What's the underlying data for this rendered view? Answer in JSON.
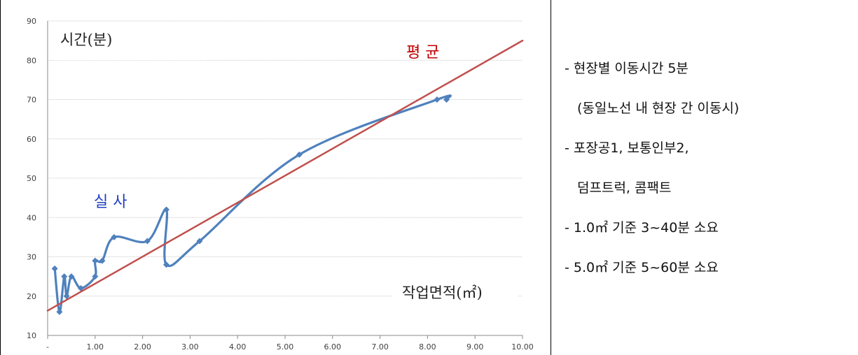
{
  "chart_data": {
    "type": "line",
    "ylabel": "시간(분)",
    "xlabel": "작업면적(㎡)",
    "xlim": [
      0,
      10
    ],
    "ylim": [
      10,
      90
    ],
    "x_ticks": [
      "-",
      "1.00",
      "2.00",
      "3.00",
      "4.00",
      "5.00",
      "6.00",
      "7.00",
      "8.00",
      "9.00",
      "10.00"
    ],
    "y_ticks": [
      "10",
      "20",
      "30",
      "40",
      "50",
      "60",
      "70",
      "80",
      "90"
    ],
    "grid": true,
    "annotations": {
      "average": "평  균",
      "actual": "실  사"
    },
    "series": [
      {
        "label_ref": "actual",
        "color": "#4f81bd",
        "smooth": true,
        "points": [
          [
            0.15,
            27
          ],
          [
            0.25,
            16
          ],
          [
            0.35,
            25
          ],
          [
            0.4,
            20
          ],
          [
            0.5,
            25
          ],
          [
            0.7,
            22
          ],
          [
            1.0,
            25
          ],
          [
            1.0,
            29
          ],
          [
            1.15,
            29
          ],
          [
            1.4,
            35
          ],
          [
            2.1,
            34
          ],
          [
            2.5,
            42
          ],
          [
            2.5,
            28
          ],
          [
            3.2,
            34
          ],
          [
            5.3,
            56
          ],
          [
            8.2,
            70
          ],
          [
            8.4,
            70
          ]
        ]
      },
      {
        "label_ref": "average",
        "color": "#c0504d",
        "smooth": false,
        "points": [
          [
            0,
            16.3
          ],
          [
            10,
            85
          ]
        ]
      }
    ]
  },
  "notes": [
    "- 현장별 이동시간 5분",
    "(동일노선 내 현장 간 이동시)",
    "- 포장공1, 보통인부2,",
    "덤프트럭, 콤팩트",
    "- 1.0㎡ 기준   3~40분 소요",
    "- 5.0㎡ 기준   5~60분 소요"
  ]
}
